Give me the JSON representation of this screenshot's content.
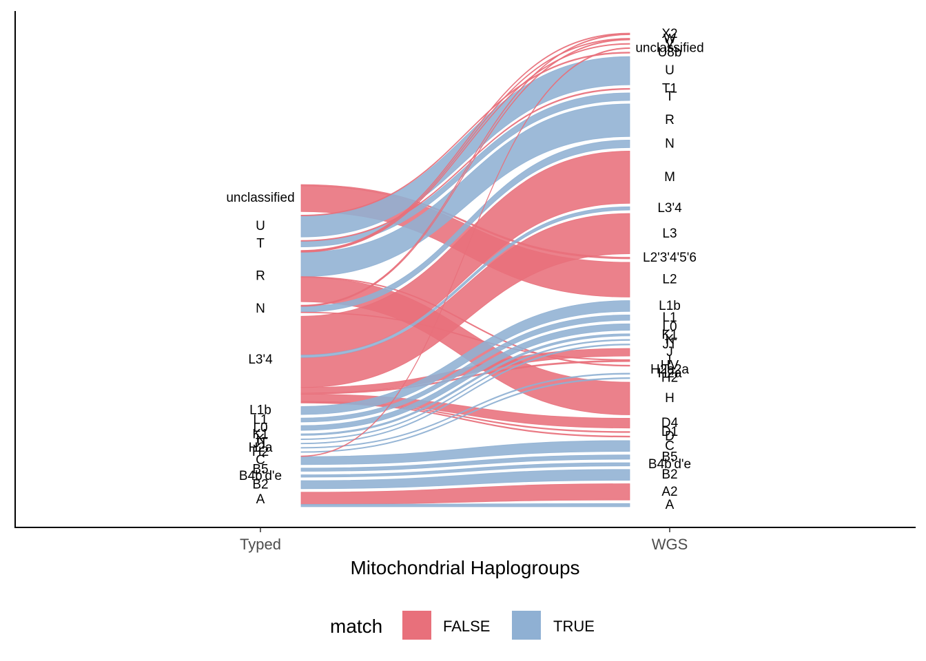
{
  "chart_data": {
    "type": "alluvial",
    "xlabel": "Mitochondrial Haplogroups",
    "axes": [
      "Typed",
      "WGS"
    ],
    "legend": {
      "title": "match",
      "position": "bottom",
      "items": [
        {
          "label": "FALSE",
          "color": "#E8707B"
        },
        {
          "label": "TRUE",
          "color": "#8FB0D3"
        }
      ]
    },
    "colors": {
      "FALSE": "#E8707B",
      "TRUE": "#8FB0D3"
    },
    "strata_typed": [
      "unclassified",
      "U",
      "T",
      "R",
      "N",
      "L3'4",
      "L1b",
      "L1",
      "L0",
      "K1",
      "K",
      "JT",
      "H2a",
      "H2",
      "C",
      "B5",
      "B4b'd'e",
      "B2",
      "A"
    ],
    "strata_wgs": [
      "X2",
      "W",
      "V",
      "unclassified",
      "U8b",
      "U",
      "T1",
      "T",
      "R",
      "N",
      "M",
      "L3'4",
      "L3",
      "L2'3'4'5'6",
      "L2",
      "L1b",
      "L1",
      "L0",
      "K1",
      "K",
      "JT",
      "J",
      "I",
      "HV",
      "H2a2a",
      "H2a",
      "H2",
      "H",
      "D4",
      "D1",
      "D",
      "C",
      "B5",
      "B4b'd'e",
      "B2",
      "A2",
      "A"
    ],
    "flows": [
      {
        "from": "unclassified",
        "to": "L2",
        "value": 3.2,
        "match": "FALSE"
      },
      {
        "from": "unclassified",
        "to": "L2'3'4'5'6",
        "value": 0.15,
        "match": "FALSE"
      },
      {
        "from": "U",
        "to": "U",
        "value": 2.6,
        "match": "TRUE"
      },
      {
        "from": "U",
        "to": "U8b",
        "value": 0.1,
        "match": "FALSE"
      },
      {
        "from": "T",
        "to": "T",
        "value": 0.7,
        "match": "TRUE"
      },
      {
        "from": "T",
        "to": "T1",
        "value": 0.1,
        "match": "FALSE"
      },
      {
        "from": "R",
        "to": "R",
        "value": 3.0,
        "match": "TRUE"
      },
      {
        "from": "R",
        "to": "X2",
        "value": 0.08,
        "match": "FALSE"
      },
      {
        "from": "R",
        "to": "W",
        "value": 0.08,
        "match": "FALSE"
      },
      {
        "from": "R",
        "to": "V",
        "value": 0.08,
        "match": "FALSE"
      },
      {
        "from": "R",
        "to": "H",
        "value": 3.0,
        "match": "FALSE"
      },
      {
        "from": "R",
        "to": "HV",
        "value": 0.1,
        "match": "FALSE"
      },
      {
        "from": "N",
        "to": "N",
        "value": 0.7,
        "match": "TRUE"
      },
      {
        "from": "N",
        "to": "X2",
        "value": 0.08,
        "match": "FALSE"
      },
      {
        "from": "N",
        "to": "I",
        "value": 0.08,
        "match": "FALSE"
      },
      {
        "from": "N",
        "to": "W",
        "value": 0.08,
        "match": "FALSE"
      },
      {
        "from": "L3'4",
        "to": "M",
        "value": 4.8,
        "match": "FALSE"
      },
      {
        "from": "L3'4",
        "to": "L3",
        "value": 3.7,
        "match": "FALSE"
      },
      {
        "from": "L3'4",
        "to": "L3'4",
        "value": 0.3,
        "match": "TRUE"
      },
      {
        "from": "L3'4",
        "to": "J",
        "value": 0.7,
        "match": "FALSE"
      },
      {
        "from": "L3'4",
        "to": "I",
        "value": 0.12,
        "match": "FALSE"
      },
      {
        "from": "L3'4",
        "to": "D4",
        "value": 0.9,
        "match": "FALSE"
      },
      {
        "from": "L3'4",
        "to": "D1",
        "value": 0.1,
        "match": "FALSE"
      },
      {
        "from": "L3'4",
        "to": "D",
        "value": 0.1,
        "match": "FALSE"
      },
      {
        "from": "L1b",
        "to": "L1b",
        "value": 1.0,
        "match": "TRUE"
      },
      {
        "from": "L1",
        "to": "L1",
        "value": 0.5,
        "match": "TRUE"
      },
      {
        "from": "L0",
        "to": "L0",
        "value": 0.6,
        "match": "TRUE"
      },
      {
        "from": "K1",
        "to": "K1",
        "value": 0.2,
        "match": "TRUE"
      },
      {
        "from": "K",
        "to": "K",
        "value": 0.1,
        "match": "TRUE"
      },
      {
        "from": "JT",
        "to": "JT",
        "value": 0.1,
        "match": "TRUE"
      },
      {
        "from": "H2a",
        "to": "H2a",
        "value": 0.1,
        "match": "TRUE"
      },
      {
        "from": "H2",
        "to": "H2",
        "value": 0.1,
        "match": "TRUE"
      },
      {
        "from": "C",
        "to": "C",
        "value": 1.0,
        "match": "TRUE"
      },
      {
        "from": "C",
        "to": "unclassified",
        "value": 0.08,
        "match": "FALSE"
      },
      {
        "from": "B5",
        "to": "B5",
        "value": 0.4,
        "match": "TRUE"
      },
      {
        "from": "B4b'd'e",
        "to": "B4b'd'e",
        "value": 0.3,
        "match": "TRUE"
      },
      {
        "from": "B2",
        "to": "B2",
        "value": 1.0,
        "match": "TRUE"
      },
      {
        "from": "A",
        "to": "A2",
        "value": 1.5,
        "match": "FALSE"
      },
      {
        "from": "A",
        "to": "A",
        "value": 0.3,
        "match": "TRUE"
      }
    ]
  }
}
